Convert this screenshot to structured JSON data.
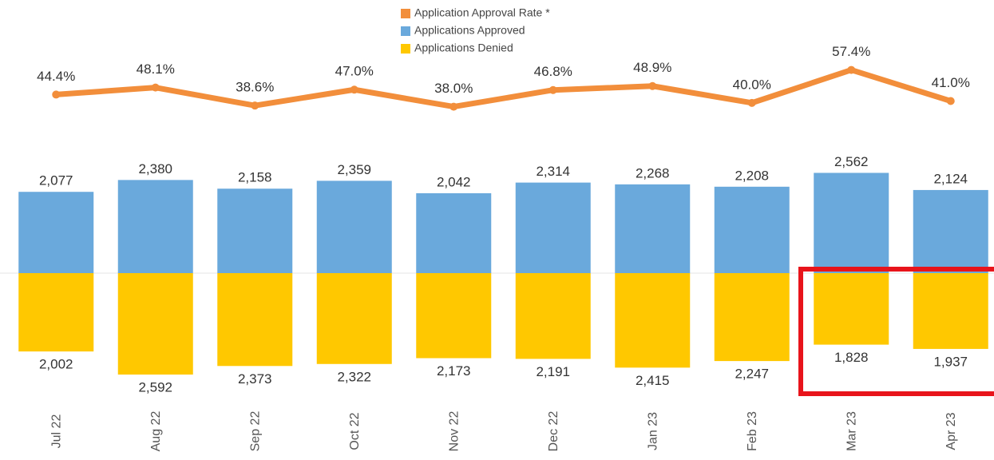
{
  "chart_data": {
    "type": "bar",
    "categories": [
      "Jul 22",
      "Aug 22",
      "Sep 22",
      "Oct 22",
      "Nov 22",
      "Dec 22",
      "Jan 23",
      "Feb 23",
      "Mar 23",
      "Apr 23"
    ],
    "series": [
      {
        "name": "Application Approval Rate *",
        "type": "line",
        "axis": "y2",
        "color": "#f28e3b",
        "values": [
          44.4,
          48.1,
          38.6,
          47.0,
          38.0,
          46.8,
          48.9,
          40.0,
          57.4,
          41.0
        ],
        "value_labels": [
          "44.4%",
          "48.1%",
          "38.6%",
          "47.0%",
          "38.0%",
          "46.8%",
          "48.9%",
          "40.0%",
          "57.4%",
          "41.0%"
        ]
      },
      {
        "name": "Applications Approved",
        "type": "bar",
        "color": "#6aa9dc",
        "values": [
          2077,
          2380,
          2158,
          2359,
          2042,
          2314,
          2268,
          2208,
          2562,
          2124
        ],
        "value_labels": [
          "2,077",
          "2,380",
          "2,158",
          "2,359",
          "2,042",
          "2,314",
          "2,268",
          "2,208",
          "2,562",
          "2,124"
        ]
      },
      {
        "name": "Applications Denied",
        "type": "bar",
        "color": "#ffc800",
        "values": [
          -2002,
          -2592,
          -2373,
          -2322,
          -2173,
          -2191,
          -2415,
          -2247,
          -1828,
          -1937
        ],
        "value_labels": [
          "2,002",
          "2,592",
          "2,373",
          "2,322",
          "2,173",
          "2,191",
          "2,415",
          "2,247",
          "1,828",
          "1,937"
        ]
      }
    ],
    "ylim": [
      -3000,
      3000
    ],
    "y2lim": [
      10,
      80
    ]
  }
}
